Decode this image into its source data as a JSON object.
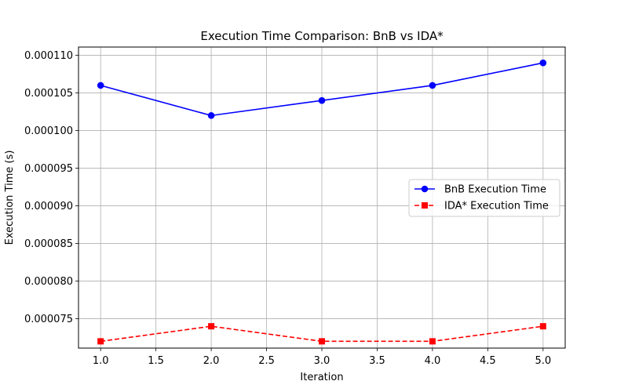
{
  "chart_data": {
    "type": "line",
    "title": "Execution Time Comparison: BnB vs IDA*",
    "xlabel": "Iteration",
    "ylabel": "Execution Time (s)",
    "x": [
      1.0,
      2.0,
      3.0,
      4.0,
      5.0
    ],
    "xlim": [
      0.8,
      5.2
    ],
    "ylim": [
      7.11e-05,
      0.0001111
    ],
    "xticks": [
      1.0,
      1.5,
      2.0,
      2.5,
      3.0,
      3.5,
      4.0,
      4.5,
      5.0
    ],
    "xtick_labels": [
      "1.0",
      "1.5",
      "2.0",
      "2.5",
      "3.0",
      "3.5",
      "4.0",
      "4.5",
      "5.0"
    ],
    "yticks": [
      7.5e-05,
      8e-05,
      8.5e-05,
      9e-05,
      9.5e-05,
      0.0001,
      0.000105,
      0.00011
    ],
    "ytick_labels": [
      "0.000075",
      "0.000080",
      "0.000085",
      "0.000090",
      "0.000095",
      "0.000100",
      "0.000105",
      "0.000110"
    ],
    "grid": true,
    "legend_position": "center-right",
    "series": [
      {
        "name": "BnB Execution Time",
        "values": [
          0.000106,
          0.000102,
          0.000104,
          0.000106,
          0.000109
        ],
        "color": "#0000ff",
        "marker": "circle",
        "linestyle": "solid"
      },
      {
        "name": "IDA* Execution Time",
        "values": [
          7.2e-05,
          7.4e-05,
          7.2e-05,
          7.2e-05,
          7.4e-05
        ],
        "color": "#ff0000",
        "marker": "square",
        "linestyle": "dashed"
      }
    ]
  }
}
